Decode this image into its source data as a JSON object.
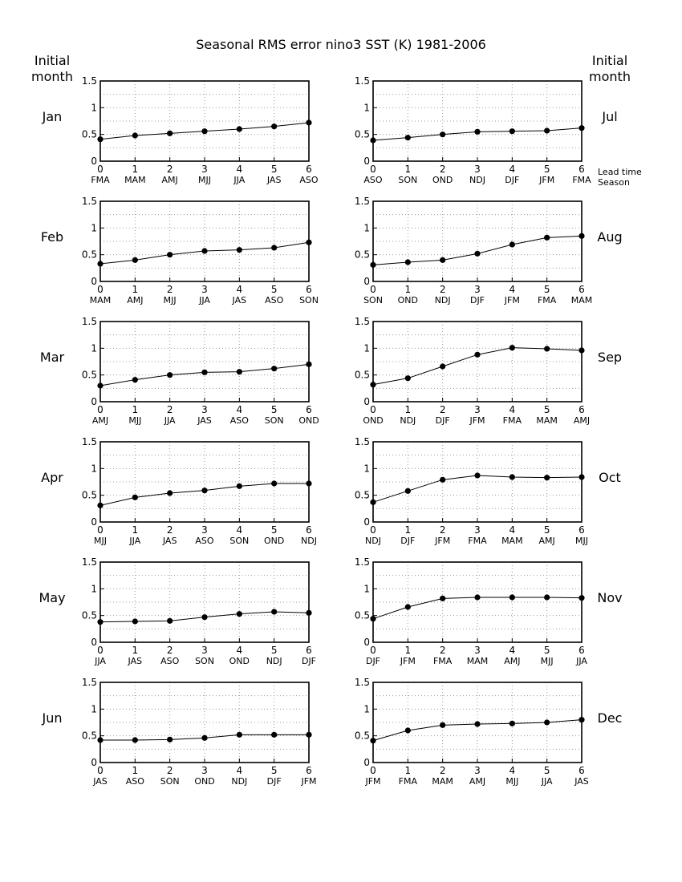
{
  "title": "Seasonal RMS error   nino3 SST (K)   1981-2006",
  "left_header": [
    "Initial",
    "month"
  ],
  "right_header": [
    "Initial",
    "month"
  ],
  "lead_time_label": "Lead time",
  "season_label": "Season",
  "chart_data": [
    {
      "type": "line",
      "month": "Jan",
      "x": [
        0,
        1,
        2,
        3,
        4,
        5,
        6
      ],
      "ylim": [
        0,
        1.5
      ],
      "yticks": [
        "0",
        "0.5",
        "1",
        "1.5"
      ],
      "seasons": [
        "FMA",
        "MAM",
        "AMJ",
        "MJJ",
        "JJA",
        "JAS",
        "ASO"
      ],
      "values": [
        0.41,
        0.48,
        0.52,
        0.56,
        0.6,
        0.65,
        0.72
      ]
    },
    {
      "type": "line",
      "month": "Jul",
      "x": [
        0,
        1,
        2,
        3,
        4,
        5,
        6
      ],
      "ylim": [
        0,
        1.5
      ],
      "yticks": [
        "0",
        "0.5",
        "1",
        "1.5"
      ],
      "seasons": [
        "ASO",
        "SON",
        "OND",
        "NDJ",
        "DJF",
        "JFM",
        "FMA"
      ],
      "values": [
        0.39,
        0.44,
        0.5,
        0.55,
        0.56,
        0.57,
        0.62
      ]
    },
    {
      "type": "line",
      "month": "Feb",
      "x": [
        0,
        1,
        2,
        3,
        4,
        5,
        6
      ],
      "ylim": [
        0,
        1.5
      ],
      "yticks": [
        "0",
        "0.5",
        "1",
        "1.5"
      ],
      "seasons": [
        "MAM",
        "AMJ",
        "MJJ",
        "JJA",
        "JAS",
        "ASO",
        "SON"
      ],
      "values": [
        0.33,
        0.4,
        0.5,
        0.57,
        0.59,
        0.63,
        0.73
      ]
    },
    {
      "type": "line",
      "month": "Aug",
      "x": [
        0,
        1,
        2,
        3,
        4,
        5,
        6
      ],
      "ylim": [
        0,
        1.5
      ],
      "yticks": [
        "0",
        "0.5",
        "1",
        "1.5"
      ],
      "seasons": [
        "SON",
        "OND",
        "NDJ",
        "DJF",
        "JFM",
        "FMA",
        "MAM"
      ],
      "values": [
        0.31,
        0.36,
        0.4,
        0.52,
        0.69,
        0.82,
        0.85
      ]
    },
    {
      "type": "line",
      "month": "Mar",
      "x": [
        0,
        1,
        2,
        3,
        4,
        5,
        6
      ],
      "ylim": [
        0,
        1.5
      ],
      "yticks": [
        "0",
        "0.5",
        "1",
        "1.5"
      ],
      "seasons": [
        "AMJ",
        "MJJ",
        "JJA",
        "JAS",
        "ASO",
        "SON",
        "OND"
      ],
      "values": [
        0.3,
        0.41,
        0.5,
        0.55,
        0.56,
        0.62,
        0.7
      ]
    },
    {
      "type": "line",
      "month": "Sep",
      "x": [
        0,
        1,
        2,
        3,
        4,
        5,
        6
      ],
      "ylim": [
        0,
        1.5
      ],
      "yticks": [
        "0",
        "0.5",
        "1",
        "1.5"
      ],
      "seasons": [
        "OND",
        "NDJ",
        "DJF",
        "JFM",
        "FMA",
        "MAM",
        "AMJ"
      ],
      "values": [
        0.32,
        0.44,
        0.66,
        0.88,
        1.01,
        0.99,
        0.96
      ]
    },
    {
      "type": "line",
      "month": "Apr",
      "x": [
        0,
        1,
        2,
        3,
        4,
        5,
        6
      ],
      "ylim": [
        0,
        1.5
      ],
      "yticks": [
        "0",
        "0.5",
        "1",
        "1.5"
      ],
      "seasons": [
        "MJJ",
        "JJA",
        "JAS",
        "ASO",
        "SON",
        "OND",
        "NDJ"
      ],
      "values": [
        0.31,
        0.46,
        0.54,
        0.59,
        0.67,
        0.72,
        0.72
      ]
    },
    {
      "type": "line",
      "month": "Oct",
      "x": [
        0,
        1,
        2,
        3,
        4,
        5,
        6
      ],
      "ylim": [
        0,
        1.5
      ],
      "yticks": [
        "0",
        "0.5",
        "1",
        "1.5"
      ],
      "seasons": [
        "NDJ",
        "DJF",
        "JFM",
        "FMA",
        "MAM",
        "AMJ",
        "MJJ"
      ],
      "values": [
        0.37,
        0.58,
        0.79,
        0.87,
        0.84,
        0.83,
        0.84
      ]
    },
    {
      "type": "line",
      "month": "May",
      "x": [
        0,
        1,
        2,
        3,
        4,
        5,
        6
      ],
      "ylim": [
        0,
        1.5
      ],
      "yticks": [
        "0",
        "0.5",
        "1",
        "1.5"
      ],
      "seasons": [
        "JJA",
        "JAS",
        "ASO",
        "SON",
        "OND",
        "NDJ",
        "DJF"
      ],
      "values": [
        0.38,
        0.39,
        0.4,
        0.47,
        0.53,
        0.57,
        0.55
      ]
    },
    {
      "type": "line",
      "month": "Nov",
      "x": [
        0,
        1,
        2,
        3,
        4,
        5,
        6
      ],
      "ylim": [
        0,
        1.5
      ],
      "yticks": [
        "0",
        "0.5",
        "1",
        "1.5"
      ],
      "seasons": [
        "DJF",
        "JFM",
        "FMA",
        "MAM",
        "AMJ",
        "MJJ",
        "JJA"
      ],
      "values": [
        0.44,
        0.66,
        0.82,
        0.84,
        0.84,
        0.84,
        0.83
      ]
    },
    {
      "type": "line",
      "month": "Jun",
      "x": [
        0,
        1,
        2,
        3,
        4,
        5,
        6
      ],
      "ylim": [
        0,
        1.5
      ],
      "yticks": [
        "0",
        "0.5",
        "1",
        "1.5"
      ],
      "seasons": [
        "JAS",
        "ASO",
        "SON",
        "OND",
        "NDJ",
        "DJF",
        "JFM"
      ],
      "values": [
        0.42,
        0.42,
        0.43,
        0.46,
        0.52,
        0.52,
        0.52
      ]
    },
    {
      "type": "line",
      "month": "Dec",
      "x": [
        0,
        1,
        2,
        3,
        4,
        5,
        6
      ],
      "ylim": [
        0,
        1.5
      ],
      "yticks": [
        "0",
        "0.5",
        "1",
        "1.5"
      ],
      "seasons": [
        "JFM",
        "FMA",
        "MAM",
        "AMJ",
        "MJJ",
        "JJA",
        "JAS"
      ],
      "values": [
        0.41,
        0.6,
        0.7,
        0.72,
        0.73,
        0.75,
        0.8
      ]
    }
  ]
}
